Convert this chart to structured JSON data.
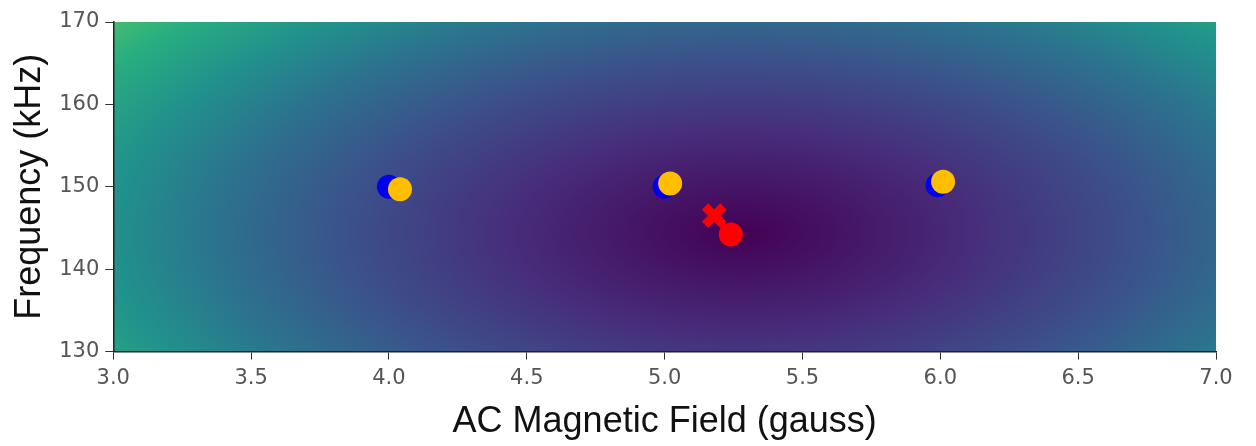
{
  "chart_data": {
    "type": "scatter",
    "xlabel": "AC Magnetic Field (gauss)",
    "ylabel": "Frequency (kHz)",
    "xlim": [
      3.0,
      7.0
    ],
    "xticks": [
      {
        "value": 3,
        "label": "3.0"
      },
      {
        "value": 3.5,
        "label": "3.5"
      },
      {
        "value": 4,
        "label": "4.0"
      },
      {
        "value": 4.5,
        "label": "4.5"
      },
      {
        "value": 5,
        "label": "5.0"
      },
      {
        "value": 5.5,
        "label": "5.5"
      },
      {
        "value": 6,
        "label": "6.0"
      },
      {
        "value": 6.5,
        "label": "6.5"
      },
      {
        "value": 7,
        "label": "7.0"
      }
    ],
    "ylim": [
      130,
      170
    ],
    "yticks": [
      130,
      140,
      150,
      160,
      170
    ],
    "grid": false,
    "legend": false,
    "series": [
      {
        "color": "#0000ee",
        "marker": "circle",
        "x": [
          4.0,
          5.0,
          5.99
        ],
        "values": [
          150.0,
          150.0,
          150.2
        ]
      },
      {
        "color": "#ffbf00",
        "marker": "circle",
        "x": [
          4.04,
          5.02,
          6.01
        ],
        "values": [
          149.7,
          150.4,
          150.6
        ]
      },
      {
        "color": "#ff0000",
        "marker": "cross",
        "x": [
          5.18
        ],
        "values": [
          146.5
        ]
      },
      {
        "color": "#ff0000",
        "marker": "circle",
        "x": [
          5.24
        ],
        "values": [
          144.2
        ]
      }
    ]
  }
}
